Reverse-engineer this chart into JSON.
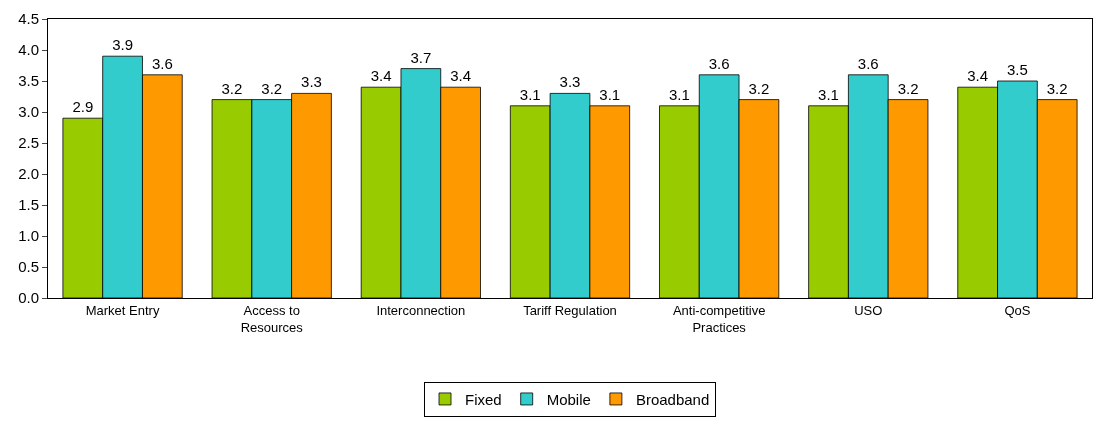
{
  "chart_data": {
    "type": "bar",
    "categories": [
      "Market Entry",
      "Access to Resources",
      "Interconnection",
      "Tariff Regulation",
      "Anti-competitive Practices",
      "USO",
      "QoS"
    ],
    "series": [
      {
        "name": "Fixed",
        "color": "#99cc00",
        "values": [
          2.9,
          3.2,
          3.4,
          3.1,
          3.1,
          3.1,
          3.4
        ]
      },
      {
        "name": "Mobile",
        "color": "#33cccc",
        "values": [
          3.9,
          3.2,
          3.7,
          3.3,
          3.6,
          3.6,
          3.5
        ]
      },
      {
        "name": "Broadband",
        "color": "#ff9900",
        "values": [
          3.6,
          3.3,
          3.4,
          3.1,
          3.2,
          3.2,
          3.2
        ]
      }
    ],
    "ylim": [
      0,
      4.5
    ],
    "yticks": [
      "0.0",
      "0.5",
      "1.0",
      "1.5",
      "2.0",
      "2.5",
      "3.0",
      "3.5",
      "4.0",
      "4.5"
    ],
    "data_labels": true,
    "grid": false,
    "legend": "bottom"
  }
}
